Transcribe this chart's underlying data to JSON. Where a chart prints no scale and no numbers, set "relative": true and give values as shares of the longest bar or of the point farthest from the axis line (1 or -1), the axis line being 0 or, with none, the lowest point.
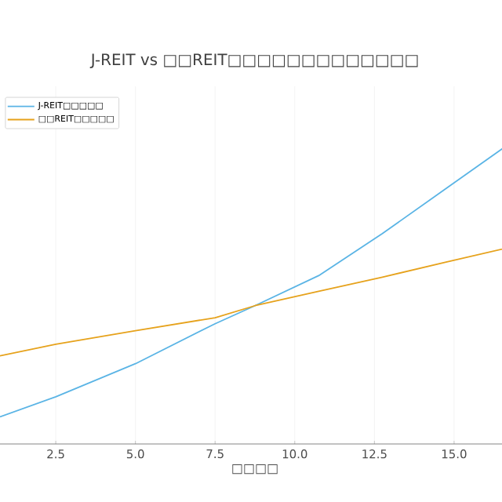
{
  "chart_data": {
    "type": "line",
    "title": "J-REIT vs □□REIT□□□□□□□□□□□□□",
    "xlabel": "□□□□",
    "x": [
      0.75,
      2.5,
      5,
      7.5,
      8.75,
      10.75,
      12.75,
      14.75,
      16.75
    ],
    "series": [
      {
        "name": "J-REIT□□□□□",
        "color": "#5ab4e5",
        "values": [
          0.09,
          0.157,
          0.267,
          0.4,
          0.46,
          0.56,
          0.7,
          0.85,
          1
        ]
      },
      {
        "name": "□□REIT□□□□□",
        "color": "#e6a21c",
        "values": [
          0.293,
          0.332,
          0.377,
          0.42,
          0.46,
          0.508,
          0.555,
          0.605,
          0.654
        ]
      }
    ],
    "relative": true,
    "xlim": [
      0.75,
      16.75
    ],
    "xticks": [
      {
        "value": 2.5,
        "label": "2.5"
      },
      {
        "value": 5,
        "label": "5.0"
      },
      {
        "value": 7.5,
        "label": "7.5"
      },
      {
        "value": 10,
        "label": "10.0"
      },
      {
        "value": 12.5,
        "label": "12.5"
      },
      {
        "value": 15,
        "label": "15.0"
      }
    ],
    "tick_labels": "x",
    "grid": true,
    "legend": "top left"
  }
}
